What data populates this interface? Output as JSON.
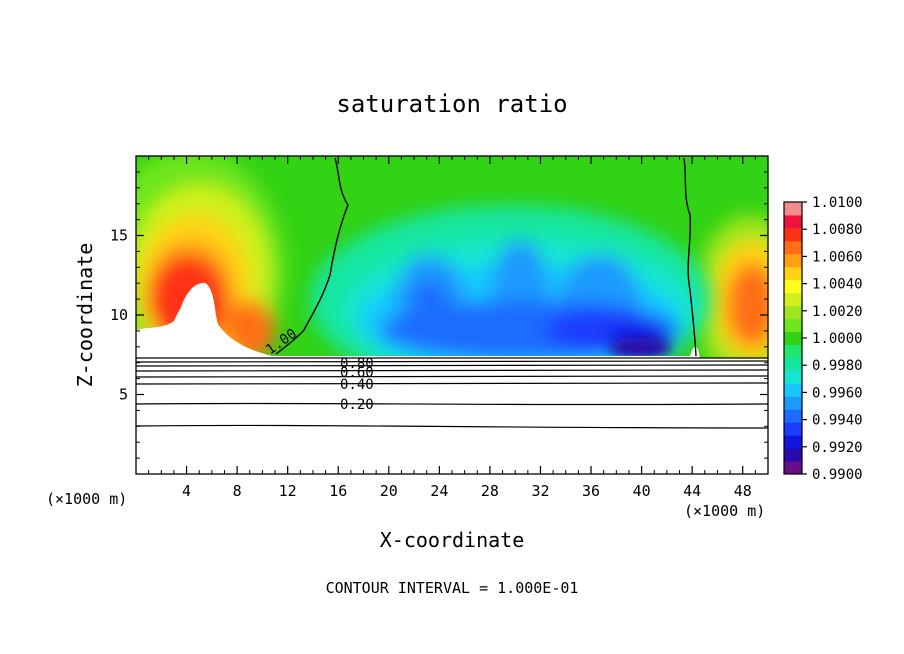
{
  "chart_data": {
    "type": "heatmap",
    "title": "saturation ratio",
    "xlabel": "X-coordinate",
    "ylabel": "Z-coordinate",
    "x_unit": "(×1000 m)",
    "x_unit_right": "(×1000 m)",
    "xlim": [
      0,
      50
    ],
    "ylim": [
      0,
      20
    ],
    "x_ticks": [
      4,
      8,
      12,
      16,
      20,
      24,
      28,
      32,
      36,
      40,
      44,
      48
    ],
    "y_ticks": [
      5,
      10,
      15
    ],
    "colorbar": {
      "min": 0.99,
      "max": 1.01,
      "levels": [
        0.99,
        0.991,
        0.992,
        0.993,
        0.994,
        0.995,
        0.996,
        0.997,
        0.998,
        0.999,
        1.0,
        1.001,
        1.002,
        1.003,
        1.004,
        1.005,
        1.006,
        1.007,
        1.008,
        1.009,
        1.01
      ],
      "tick_labels": [
        "1.0100",
        "1.0080",
        "1.0060",
        "1.0040",
        "1.0020",
        "1.0000",
        "0.9980",
        "0.9960",
        "0.9940",
        "0.9920",
        "0.9900"
      ],
      "colors": [
        "#6a0d8a",
        "#2a0aa8",
        "#1414e0",
        "#1e3cff",
        "#1e6cff",
        "#1e9aff",
        "#14c8ff",
        "#14e6d2",
        "#14e6a0",
        "#1ee66e",
        "#32d214",
        "#6ee61e",
        "#a0e61e",
        "#d2f01e",
        "#ffff1e",
        "#ffd214",
        "#ffa014",
        "#ff6e14",
        "#ff3214",
        "#f0143c",
        "#f08c8c"
      ]
    },
    "contour_lines": [
      {
        "label": "1.00"
      },
      {
        "label": "0.80"
      },
      {
        "label": "0.60"
      },
      {
        "label": "0.40"
      },
      {
        "label": "0.20"
      }
    ],
    "footnote": "CONTOUR INTERVAL = 1.000E-01"
  }
}
